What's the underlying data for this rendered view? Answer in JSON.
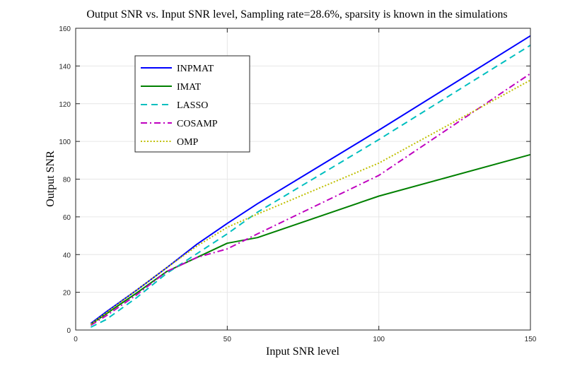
{
  "chart_data": {
    "type": "line",
    "title": "Output SNR vs. Input SNR level, Sampling rate=28.6%, sparsity is known in the simulations",
    "xlabel": "Input SNR level",
    "ylabel": "Output SNR",
    "xlim": [
      0,
      150
    ],
    "ylim": [
      0,
      160
    ],
    "xticks": [
      0,
      50,
      100,
      150
    ],
    "yticks": [
      0,
      20,
      40,
      60,
      80,
      100,
      120,
      140,
      160
    ],
    "grid": true,
    "legend_position": "top-left",
    "series": [
      {
        "name": "INPMAT",
        "color": "#0000ff",
        "style": "solid",
        "x": [
          5,
          10,
          20,
          30,
          40,
          50,
          60,
          100,
          150
        ],
        "y": [
          3.5,
          9.5,
          21,
          33,
          45.5,
          56.5,
          67,
          106,
          156
        ]
      },
      {
        "name": "IMAT",
        "color": "#008000",
        "style": "solid",
        "x": [
          5,
          10,
          20,
          30,
          40,
          50,
          60,
          100,
          150
        ],
        "y": [
          3,
          8.5,
          19.5,
          31,
          38.5,
          46,
          49,
          71,
          93
        ]
      },
      {
        "name": "LASSO",
        "color": "#00bfbf",
        "style": "dashed",
        "x": [
          5,
          10,
          20,
          30,
          40,
          50,
          60,
          100,
          150
        ],
        "y": [
          1.5,
          5.5,
          17,
          30,
          40.5,
          51,
          62.5,
          101,
          151
        ]
      },
      {
        "name": "COSAMP",
        "color": "#bf00bf",
        "style": "dashdot",
        "x": [
          5,
          10,
          20,
          30,
          40,
          50,
          60,
          100,
          150
        ],
        "y": [
          2.5,
          7.5,
          18.5,
          31,
          38.5,
          43,
          51,
          82,
          136
        ]
      },
      {
        "name": "OMP",
        "color": "#bfbf00",
        "style": "dotted",
        "x": [
          5,
          10,
          20,
          30,
          40,
          50,
          60,
          100,
          150
        ],
        "y": [
          3,
          9,
          21,
          33,
          44.5,
          54.5,
          61.5,
          88.5,
          132.5
        ]
      }
    ]
  }
}
